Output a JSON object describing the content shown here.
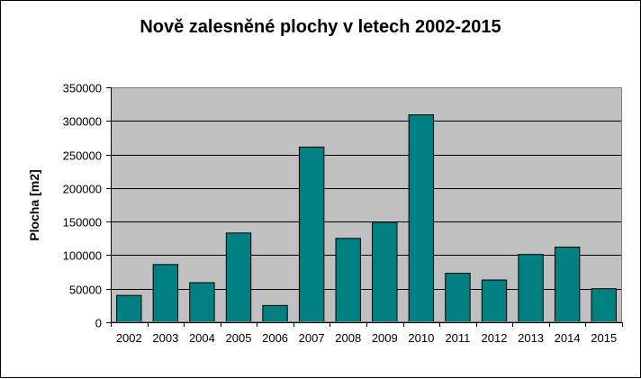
{
  "chart_data": {
    "type": "bar",
    "title": "Nově zalesněné plochy v letech 2002-2015",
    "xlabel": "",
    "ylabel": "Plocha [m2]",
    "ylim": [
      0,
      350000
    ],
    "yticks": [
      0,
      50000,
      100000,
      150000,
      200000,
      250000,
      300000,
      350000
    ],
    "ytick_labels": [
      "0",
      "50000",
      "100000",
      "150000",
      "200000",
      "250000",
      "300000",
      "350000"
    ],
    "grid": true,
    "legend": "none",
    "categories": [
      "2002",
      "2003",
      "2004",
      "2005",
      "2006",
      "2007",
      "2008",
      "2009",
      "2010",
      "2011",
      "2012",
      "2013",
      "2014",
      "2015"
    ],
    "values": [
      40000,
      86000,
      59000,
      133000,
      25000,
      261000,
      125000,
      149000,
      309000,
      73000,
      63000,
      101000,
      112000,
      50000
    ]
  },
  "colors": {
    "bar": "#008080",
    "plot_background": "#c0c0c0",
    "gridline": "#000000",
    "frame": "#000000"
  }
}
